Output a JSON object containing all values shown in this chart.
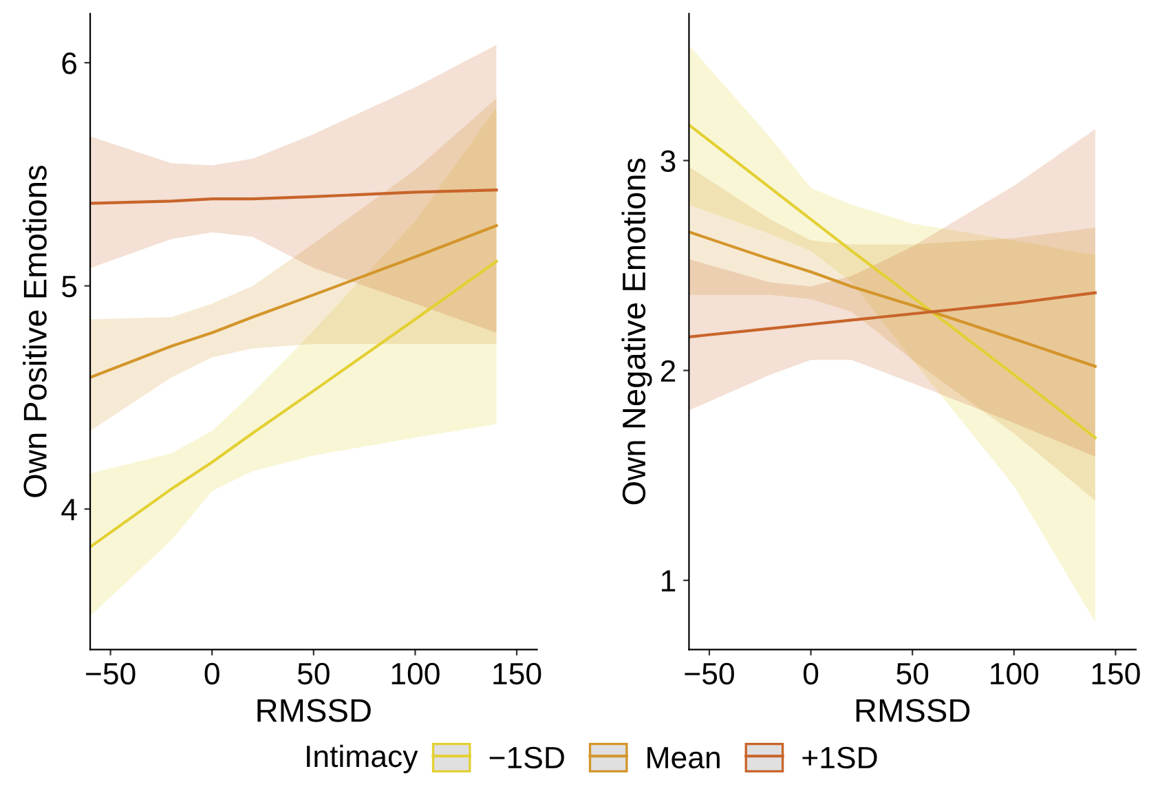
{
  "chart_data": [
    {
      "type": "line",
      "xlabel": "RMSSD",
      "ylabel": "Own Positive Emotions",
      "legend_title": "Intimacy",
      "legend": "bottom",
      "grid": false,
      "marker": "none",
      "line_style": "solid",
      "xlim": [
        -60,
        160
      ],
      "xticks": [
        {
          "value": -50,
          "label": "−50"
        },
        0,
        50,
        100,
        150
      ],
      "ylim": [
        3.37,
        6.22
      ],
      "yticks": [
        4,
        5,
        6
      ],
      "series": [
        {
          "name": "−1SD",
          "color": "#e3d034",
          "x": [
            -60,
            -20,
            0,
            20,
            50,
            100,
            140
          ],
          "values": [
            3.83,
            4.09,
            4.21,
            4.34,
            4.53,
            4.85,
            5.11
          ],
          "lower": [
            3.52,
            3.86,
            4.08,
            4.17,
            4.24,
            4.32,
            4.38
          ],
          "upper": [
            4.16,
            4.25,
            4.35,
            4.52,
            4.8,
            5.29,
            5.8
          ]
        },
        {
          "name": "Mean",
          "color": "#d4952a",
          "x": [
            -60,
            -20,
            0,
            20,
            50,
            100,
            140
          ],
          "values": [
            4.59,
            4.73,
            4.79,
            4.86,
            4.96,
            5.13,
            5.27
          ],
          "lower": [
            4.35,
            4.59,
            4.68,
            4.72,
            4.74,
            4.74,
            4.74
          ],
          "upper": [
            4.85,
            4.86,
            4.92,
            5.0,
            5.19,
            5.52,
            5.84
          ]
        },
        {
          "name": "+1SD",
          "color": "#c8642a",
          "x": [
            -60,
            -20,
            0,
            20,
            50,
            100,
            140
          ],
          "values": [
            5.37,
            5.38,
            5.39,
            5.39,
            5.4,
            5.42,
            5.43
          ],
          "lower": [
            5.08,
            5.21,
            5.24,
            5.22,
            5.08,
            4.92,
            4.79
          ],
          "upper": [
            5.67,
            5.55,
            5.54,
            5.57,
            5.68,
            5.89,
            6.08
          ]
        }
      ]
    },
    {
      "type": "line",
      "xlabel": "RMSSD",
      "ylabel": "Own Negative Emotions",
      "grid": false,
      "marker": "none",
      "line_style": "solid",
      "xlim": [
        -60,
        160
      ],
      "xticks": [
        {
          "value": -50,
          "label": "−50"
        },
        0,
        50,
        100,
        150
      ],
      "ylim": [
        0.67,
        3.7
      ],
      "yticks": [
        1,
        2,
        3
      ],
      "series": [
        {
          "color": "#e3d034",
          "x": [
            -60,
            -20,
            0,
            20,
            50,
            100,
            140
          ],
          "values": [
            3.17,
            2.87,
            2.72,
            2.57,
            2.35,
            1.98,
            1.68
          ],
          "lower": [
            2.79,
            2.65,
            2.57,
            2.42,
            2.05,
            1.45,
            0.8
          ],
          "upper": [
            3.55,
            3.11,
            2.87,
            2.79,
            2.7,
            2.62,
            2.55
          ]
        },
        {
          "color": "#d4952a",
          "x": [
            -60,
            -20,
            0,
            20,
            50,
            100,
            140
          ],
          "values": [
            2.66,
            2.53,
            2.47,
            2.4,
            2.31,
            2.15,
            2.02
          ],
          "lower": [
            2.36,
            2.36,
            2.34,
            2.28,
            2.05,
            1.7,
            1.38
          ],
          "upper": [
            2.97,
            2.72,
            2.62,
            2.6,
            2.6,
            2.63,
            2.68
          ]
        },
        {
          "color": "#c8642a",
          "x": [
            -60,
            -20,
            0,
            20,
            50,
            100,
            140
          ],
          "values": [
            2.16,
            2.2,
            2.22,
            2.24,
            2.27,
            2.32,
            2.37
          ],
          "lower": [
            1.81,
            1.98,
            2.05,
            2.05,
            1.94,
            1.75,
            1.59
          ],
          "upper": [
            2.53,
            2.42,
            2.4,
            2.45,
            2.59,
            2.88,
            3.15
          ]
        }
      ]
    }
  ]
}
